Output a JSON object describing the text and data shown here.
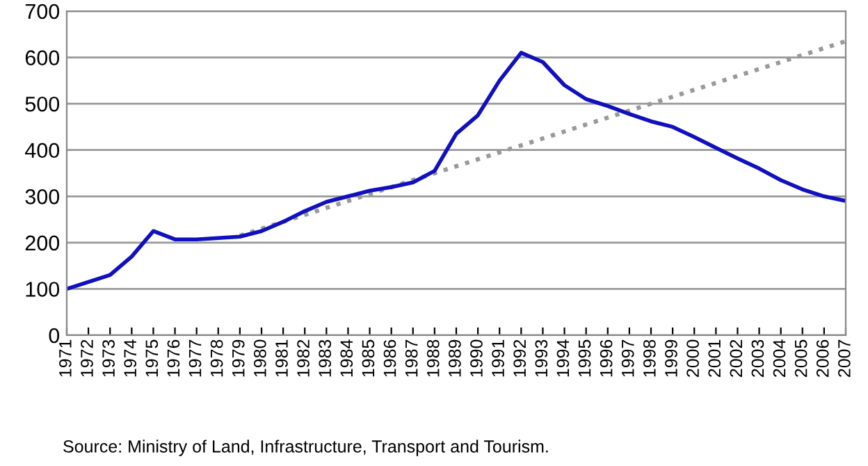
{
  "chart_data": {
    "type": "line",
    "categories": [
      "1971",
      "1972",
      "1973",
      "1974",
      "1975",
      "1976",
      "1977",
      "1978",
      "1979",
      "1980",
      "1981",
      "1982",
      "1983",
      "1984",
      "1985",
      "1986",
      "1987",
      "1988",
      "1989",
      "1990",
      "1991",
      "1992",
      "1993",
      "1994",
      "1995",
      "1996",
      "1997",
      "1998",
      "1999",
      "2000",
      "2001",
      "2002",
      "2003",
      "2004",
      "2005",
      "2006",
      "2007"
    ],
    "series": [
      {
        "color": "#999999",
        "line_style": "dotted",
        "values": [
          null,
          null,
          null,
          null,
          null,
          null,
          null,
          null,
          215,
          230,
          245,
          260,
          275,
          290,
          305,
          320,
          335,
          350,
          365,
          380,
          395,
          410,
          425,
          440,
          455,
          470,
          485,
          500,
          515,
          530,
          545,
          560,
          575,
          590,
          605,
          620,
          635
        ]
      },
      {
        "color": "#1010c0",
        "line_style": "solid",
        "values": [
          100,
          115,
          130,
          170,
          225,
          207,
          207,
          210,
          213,
          225,
          245,
          268,
          288,
          300,
          312,
          320,
          330,
          355,
          435,
          475,
          550,
          610,
          590,
          540,
          510,
          495,
          478,
          462,
          450,
          428,
          405,
          382,
          360,
          335,
          315,
          300,
          290
        ]
      }
    ],
    "ylim": [
      0,
      700
    ],
    "yticks": [
      0,
      100,
      200,
      300,
      400,
      500,
      600,
      700
    ],
    "grid": "y",
    "marker": "none",
    "legend": false,
    "annotations": [
      "Source: Ministry of Land, Infrastructure, Transport and Tourism."
    ]
  }
}
